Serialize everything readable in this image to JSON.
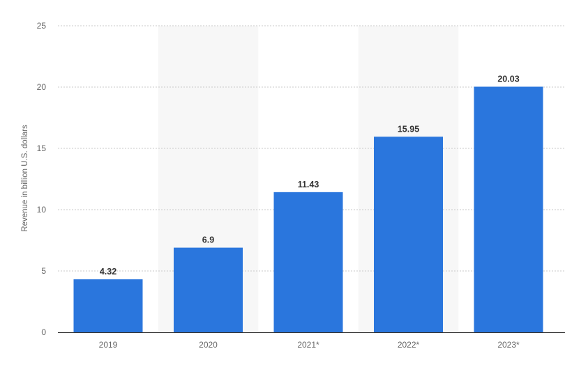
{
  "chart_data": {
    "type": "bar",
    "categories": [
      "2019",
      "2020",
      "2021*",
      "2022*",
      "2023*"
    ],
    "values": [
      4.32,
      6.9,
      11.43,
      15.95,
      20.03
    ],
    "value_labels": [
      "4.32",
      "6.9",
      "11.43",
      "15.95",
      "20.03"
    ],
    "title": "",
    "xlabel": "",
    "ylabel": "Revenue in billion U.S. dollars",
    "ylim": [
      0,
      25
    ],
    "yticks": [
      0,
      5,
      10,
      15,
      20,
      25
    ],
    "grid": "horizontal dotted",
    "shaded_bands": [
      "2020",
      "2022*"
    ],
    "colors": {
      "bar": "#2a76dd",
      "band": "#f7f7f7",
      "grid": "#c9c9c9",
      "axis": "#333333"
    }
  }
}
